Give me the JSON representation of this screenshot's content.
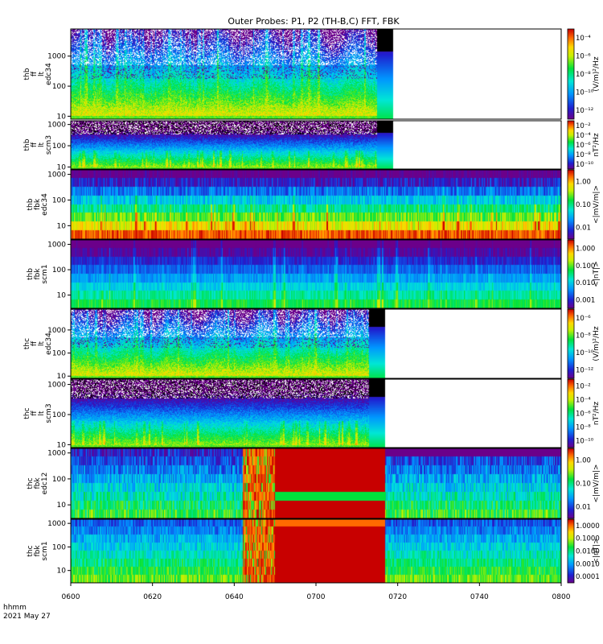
{
  "title": "Outer Probes: P1, P2 (TH-B,C) FFT, FBK",
  "time_axis": {
    "ticks": [
      "0600",
      "0620",
      "0640",
      "0700",
      "0720",
      "0740",
      "0800"
    ],
    "minutes": [
      0,
      20,
      40,
      60,
      80,
      100,
      120
    ],
    "range_minutes": [
      0,
      120
    ]
  },
  "footer": {
    "hhmm": "hhmm",
    "date": "2021 May 27"
  },
  "chart_data": [
    {
      "type": "heatmap",
      "probe": "thb",
      "kind": "ff",
      "subkind": "lt",
      "instrument": "edc34",
      "ylabel": [
        "thb",
        "ff",
        "lt",
        "edc34"
      ],
      "yticks": [
        "10",
        "100",
        "1000"
      ],
      "yrange_hz": [
        8,
        8000
      ],
      "log_y": true,
      "data_end_minute": 75,
      "mode": "ffte",
      "seed": 11,
      "colorbar": {
        "label": "(V/m)²/Hz",
        "ticks": [
          "10⁻¹²",
          "10⁻¹⁰",
          "10⁻⁸",
          "10⁻⁶",
          "10⁻⁴"
        ]
      }
    },
    {
      "type": "heatmap",
      "probe": "thb",
      "kind": "ff",
      "subkind": "lt",
      "instrument": "scm3",
      "ylabel": [
        "thb",
        "ff",
        "lt",
        "scm3"
      ],
      "yticks": [
        "10",
        "100",
        "1000"
      ],
      "yrange_hz": [
        8,
        1500
      ],
      "log_y": true,
      "data_end_minute": 75,
      "mode": "fftb",
      "seed": 23,
      "colorbar": {
        "label": "nT²/Hz",
        "ticks": [
          "10⁻¹⁰",
          "10⁻⁸",
          "10⁻⁶",
          "10⁻⁴",
          "10⁻²"
        ]
      }
    },
    {
      "type": "heatmap",
      "probe": "thb",
      "kind": "fbk",
      "instrument": "edc34",
      "ylabel": [
        "thb",
        "fbk",
        "edc34"
      ],
      "yticks": [
        "10",
        "100",
        "1000"
      ],
      "yrange_hz": [
        3,
        1500
      ],
      "log_y": true,
      "data_end_minute": 120,
      "mode": "fbke",
      "seed": 37,
      "colorbar": {
        "label": "<|mV/m|>",
        "ticks": [
          "0.01",
          "0.10",
          "1.00"
        ]
      }
    },
    {
      "type": "heatmap",
      "probe": "thb",
      "kind": "fbk",
      "instrument": "scm1",
      "ylabel": [
        "thb",
        "fbk",
        "scm1"
      ],
      "yticks": [
        "10",
        "100",
        "1000"
      ],
      "yrange_hz": [
        3,
        1500
      ],
      "log_y": true,
      "data_end_minute": 120,
      "mode": "fbkb",
      "seed": 41,
      "colorbar": {
        "label": "<|nT|>",
        "ticks": [
          "0.001",
          "0.010",
          "0.100",
          "1.000"
        ]
      }
    },
    {
      "type": "heatmap",
      "probe": "thc",
      "kind": "ff",
      "subkind": "lt",
      "instrument": "edc34",
      "ylabel": [
        "thc",
        "ff",
        "lt",
        "edc34"
      ],
      "yticks": [
        "10",
        "100",
        "1000"
      ],
      "yrange_hz": [
        8,
        8000
      ],
      "log_y": true,
      "data_end_minute": 73,
      "mode": "ffte",
      "seed": 53,
      "colorbar": {
        "label": "(V/m)²/Hz",
        "ticks": [
          "10⁻¹²",
          "10⁻¹⁰",
          "10⁻⁸",
          "10⁻⁶"
        ]
      }
    },
    {
      "type": "heatmap",
      "probe": "thc",
      "kind": "ff",
      "subkind": "lt",
      "instrument": "scm3",
      "ylabel": [
        "thc",
        "ff",
        "lt",
        "scm3"
      ],
      "yticks": [
        "10",
        "100",
        "1000"
      ],
      "yrange_hz": [
        8,
        1500
      ],
      "log_y": true,
      "data_end_minute": 73,
      "mode": "fftb",
      "seed": 67,
      "colorbar": {
        "label": "nT²/Hz",
        "ticks": [
          "10⁻¹⁰",
          "10⁻⁸",
          "10⁻⁶",
          "10⁻⁴",
          "10⁻²"
        ]
      }
    },
    {
      "type": "heatmap",
      "probe": "thc",
      "kind": "fbk",
      "instrument": "edc12",
      "ylabel": [
        "thc",
        "fbk",
        "edc12"
      ],
      "yticks": [
        "10",
        "100",
        "1000"
      ],
      "yrange_hz": [
        3,
        1500
      ],
      "log_y": true,
      "data_end_minute": 120,
      "mode": "fbkc_e",
      "seed": 79,
      "saturated_interval_minutes": [
        42,
        77
      ],
      "colorbar": {
        "label": "<|mV/m|>",
        "ticks": [
          "0.01",
          "0.10",
          "1.00"
        ]
      }
    },
    {
      "type": "heatmap",
      "probe": "thc",
      "kind": "fbk",
      "instrument": "scm1",
      "ylabel": [
        "thc",
        "fbk",
        "scm1"
      ],
      "yticks": [
        "10",
        "100",
        "1000"
      ],
      "yrange_hz": [
        3,
        1500
      ],
      "log_y": true,
      "data_end_minute": 120,
      "mode": "fbkc_b",
      "seed": 97,
      "saturated_interval_minutes": [
        42,
        77
      ],
      "colorbar": {
        "label": "<|nT|>",
        "ticks": [
          "0.0001",
          "0.0010",
          "0.0100",
          "0.1000",
          "1.0000"
        ]
      }
    }
  ]
}
